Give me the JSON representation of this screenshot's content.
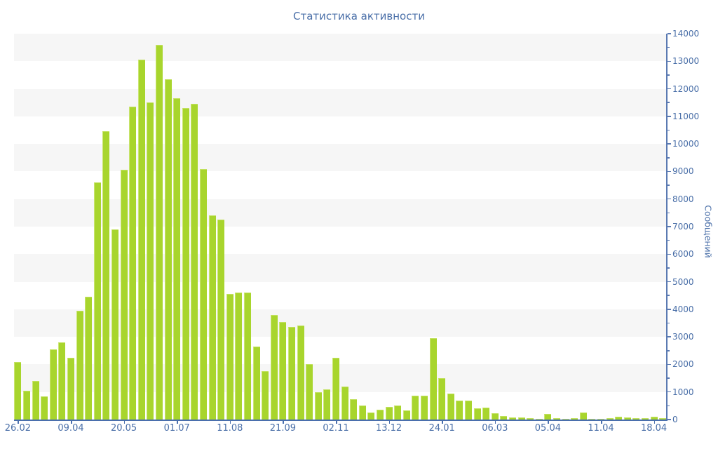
{
  "chart_data": {
    "type": "bar",
    "title": "Статистика активности",
    "ylabel": "Сообщений",
    "xlabel": "",
    "ylim": [
      0,
      14000
    ],
    "y_major_step": 1000,
    "y_minor_step": 500,
    "legend": "none",
    "grid": "alternating 1000-unit horizontal bands, gray starting at 13000-14000",
    "bar_count": 74,
    "values": [
      2100,
      1050,
      1400,
      850,
      2550,
      2800,
      2250,
      3950,
      4450,
      8600,
      10450,
      6900,
      9050,
      11350,
      13050,
      11500,
      13600,
      12350,
      11650,
      11300,
      11450,
      9100,
      7400,
      7250,
      4550,
      4600,
      4600,
      2650,
      1750,
      3800,
      3550,
      3350,
      3400,
      2000,
      1000,
      1100,
      2250,
      1200,
      750,
      500,
      250,
      350,
      450,
      500,
      340,
      875,
      865,
      2950,
      1500,
      950,
      700,
      700,
      400,
      440,
      230,
      120,
      80,
      70,
      50,
      35,
      210,
      60,
      35,
      45,
      260,
      30,
      25,
      45,
      90,
      80,
      40,
      55,
      110,
      45
    ],
    "x_ticks": [
      {
        "i": 0,
        "label": "26.02"
      },
      {
        "i": 6,
        "label": "09.04"
      },
      {
        "i": 12,
        "label": "20.05"
      },
      {
        "i": 18,
        "label": "01.07"
      },
      {
        "i": 24,
        "label": "11.08"
      },
      {
        "i": 30,
        "label": "21.09"
      },
      {
        "i": 36,
        "label": "02.11"
      },
      {
        "i": 42,
        "label": "13.12"
      },
      {
        "i": 48,
        "label": "24.01"
      },
      {
        "i": 54,
        "label": "06.03"
      },
      {
        "i": 60,
        "label": "05.04"
      },
      {
        "i": 66,
        "label": "11.04"
      },
      {
        "i": 72,
        "label": "18.04"
      }
    ],
    "y_tick_labels": [
      "14000",
      "13000",
      "12000",
      "11000",
      "10000",
      "9000",
      "8000",
      "7000",
      "6000",
      "5000",
      "4000",
      "3000",
      "2000",
      "1000",
      "0"
    ]
  },
  "colors": {
    "bar": "#a8d52d",
    "bar_highlight": "#cbe573",
    "x_axis": "#4a6fad",
    "y_axis": "#5b7ab2",
    "text": "#4a6fa8",
    "band": "#f6f6f6",
    "background": "#ffffff"
  }
}
